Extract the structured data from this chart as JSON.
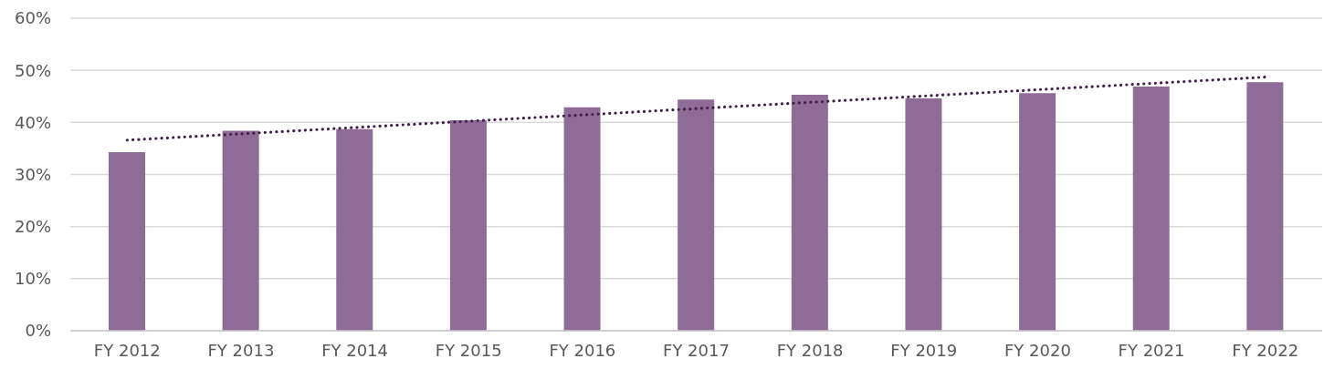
{
  "chart_data": {
    "type": "bar",
    "categories": [
      "FY 2012",
      "FY 2013",
      "FY 2014",
      "FY 2015",
      "FY 2016",
      "FY 2017",
      "FY 2018",
      "FY 2019",
      "FY 2020",
      "FY 2021",
      "FY 2022"
    ],
    "series": [
      {
        "color": "#8f6c97",
        "values": [
          34.3,
          38.4,
          38.7,
          40.4,
          42.9,
          44.4,
          45.3,
          44.6,
          45.6,
          46.9,
          47.7
        ]
      },
      {
        "type": "line",
        "color": "#41214a",
        "line_style": "dotted",
        "x": [
          "FY 2012",
          "FY 2022"
        ],
        "values": [
          36.6,
          48.7
        ]
      }
    ],
    "ylim": [
      0,
      60
    ],
    "yticks": [
      {
        "value": 0,
        "label": "0%"
      },
      {
        "value": 10,
        "label": "10%"
      },
      {
        "value": 20,
        "label": "20%"
      },
      {
        "value": 30,
        "label": "30%"
      },
      {
        "value": 40,
        "label": "40%"
      },
      {
        "value": 50,
        "label": "50%"
      },
      {
        "value": 60,
        "label": "60%"
      }
    ],
    "grid": "y"
  }
}
